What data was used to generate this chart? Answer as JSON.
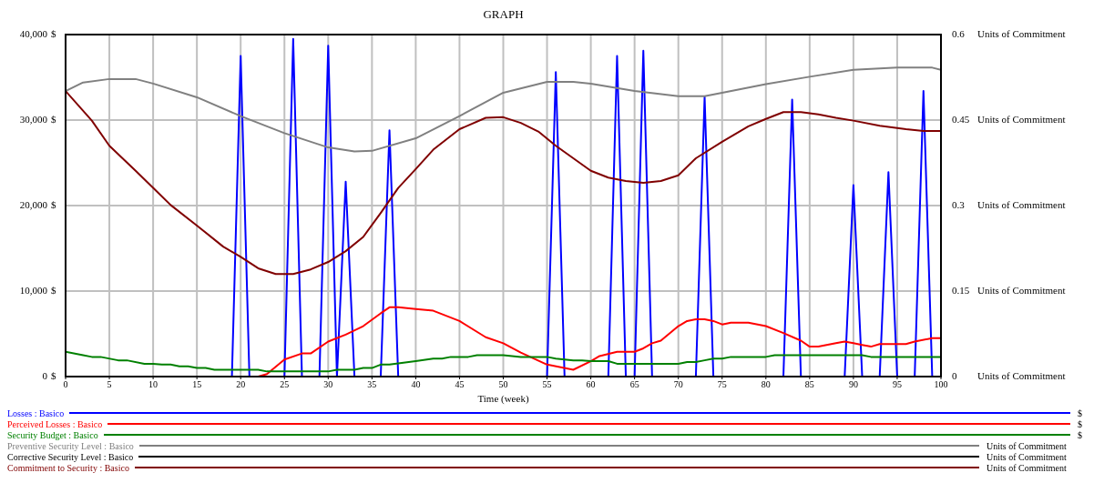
{
  "chart_data": {
    "type": "line",
    "title": "GRAPH",
    "xlabel": "Time (week)",
    "ylabel": "$",
    "y2label": "Units of Commitment",
    "xlim": [
      0,
      100
    ],
    "xticks": [
      0,
      5,
      10,
      15,
      20,
      25,
      30,
      35,
      40,
      45,
      50,
      55,
      60,
      65,
      70,
      75,
      80,
      85,
      90,
      95,
      100
    ],
    "ylim": [
      0,
      40000
    ],
    "yticks": [
      0,
      {
        "value": 10000,
        "label": "10,000"
      },
      {
        "value": 20000,
        "label": "20,000"
      },
      {
        "value": 30000,
        "label": "30,000"
      },
      {
        "value": 40000,
        "label": "40,000"
      }
    ],
    "y2lim": [
      0,
      0.6
    ],
    "y2ticks": [
      0,
      0.15,
      0.3,
      0.45,
      0.6
    ],
    "grid": true,
    "legend": "bottom",
    "marker": "none",
    "line_style": "solid",
    "series": [
      {
        "name": "Losses : Basico",
        "color": "#0000ff",
        "x": [
          0,
          19,
          20,
          21,
          25,
          26,
          27,
          29,
          30,
          31,
          32,
          33,
          36,
          37,
          38,
          55,
          56,
          57,
          62,
          63,
          64,
          65,
          66,
          67,
          72,
          73,
          74,
          82,
          83,
          84,
          89,
          90,
          91,
          93,
          94,
          95,
          97,
          98,
          99,
          100
        ],
        "values": [
          0,
          0,
          37500,
          0,
          0,
          39500,
          0,
          0,
          38700,
          0,
          22800,
          0,
          0,
          28800,
          0,
          0,
          35600,
          0,
          0,
          37500,
          0,
          0,
          38100,
          0,
          0,
          32700,
          0,
          0,
          32400,
          0,
          0,
          22400,
          0,
          0,
          23900,
          0,
          0,
          33400,
          0,
          0
        ]
      },
      {
        "name": "Perceived Losses : Basico",
        "color": "#ff0000",
        "x": [
          0,
          22,
          23,
          25,
          27,
          28,
          30,
          32,
          34,
          36,
          37,
          38,
          40,
          42,
          45,
          48,
          50,
          52,
          55,
          58,
          60,
          61,
          63,
          65,
          66,
          67,
          68,
          70,
          71,
          72,
          73,
          74,
          75,
          76,
          78,
          80,
          82,
          84,
          85,
          86,
          88,
          89,
          90,
          91,
          92,
          93,
          96,
          97,
          99,
          100
        ],
        "values": [
          0,
          0,
          300,
          2000,
          2700,
          2700,
          4100,
          4900,
          5900,
          7400,
          8100,
          8100,
          7900,
          7700,
          6500,
          4600,
          3900,
          2800,
          1400,
          800,
          1800,
          2400,
          2900,
          2900,
          3300,
          3900,
          4200,
          5900,
          6500,
          6700,
          6700,
          6500,
          6100,
          6300,
          6300,
          5900,
          5100,
          4200,
          3500,
          3500,
          3900,
          4100,
          3900,
          3700,
          3500,
          3800,
          3800,
          4100,
          4500,
          4500
        ]
      },
      {
        "name": "Security Budget : Basico",
        "color": "#008000",
        "x": [
          0,
          2,
          3,
          4,
          6,
          7,
          9,
          10,
          11,
          12,
          13,
          14,
          15,
          16,
          17,
          22,
          23,
          30,
          31,
          33,
          34,
          35,
          36,
          37,
          40,
          42,
          43,
          44,
          46,
          47,
          50,
          52,
          55,
          56,
          58,
          59,
          60,
          62,
          63,
          70,
          71,
          72,
          73,
          74,
          75,
          76,
          80,
          81,
          91,
          92,
          100
        ],
        "values": [
          2900,
          2500,
          2300,
          2300,
          1900,
          1900,
          1500,
          1500,
          1400,
          1400,
          1200,
          1200,
          1000,
          1000,
          800,
          800,
          600,
          600,
          800,
          800,
          1000,
          1000,
          1400,
          1400,
          1800,
          2100,
          2100,
          2300,
          2300,
          2500,
          2500,
          2300,
          2300,
          2100,
          1900,
          1900,
          1800,
          1800,
          1500,
          1500,
          1700,
          1700,
          1900,
          2100,
          2100,
          2300,
          2300,
          2500,
          2500,
          2300,
          2300
        ]
      },
      {
        "name": "Preventive Security Level : Basico",
        "color": "#808080",
        "axis": "y2",
        "x": [
          0,
          2,
          5,
          8,
          10,
          15,
          20,
          25,
          30,
          33,
          35,
          40,
          45,
          50,
          55,
          58,
          60,
          65,
          70,
          73,
          75,
          80,
          85,
          90,
          95,
          99,
          100
        ],
        "values": [
          0.501,
          0.516,
          0.522,
          0.522,
          0.514,
          0.49,
          0.457,
          0.427,
          0.402,
          0.395,
          0.396,
          0.418,
          0.457,
          0.498,
          0.517,
          0.517,
          0.514,
          0.501,
          0.492,
          0.492,
          0.498,
          0.513,
          0.526,
          0.538,
          0.542,
          0.542,
          0.538
        ]
      },
      {
        "name": "Corrective Security Level : Basico",
        "color": "#000000",
        "axis": "y2",
        "x": [
          0,
          100
        ],
        "values": [
          0,
          0
        ]
      },
      {
        "name": "Commitment to Security : Basico",
        "color": "#800000",
        "axis": "y2",
        "x": [
          0,
          3,
          5,
          8,
          10,
          12,
          15,
          18,
          20,
          22,
          24,
          26,
          28,
          30,
          32,
          34,
          36,
          38,
          40,
          42,
          45,
          48,
          50,
          52,
          54,
          56,
          58,
          60,
          62,
          64,
          66,
          68,
          70,
          72,
          75,
          78,
          80,
          82,
          84,
          86,
          88,
          90,
          93,
          96,
          98,
          100
        ],
        "values": [
          0.501,
          0.449,
          0.405,
          0.361,
          0.331,
          0.301,
          0.265,
          0.228,
          0.21,
          0.19,
          0.18,
          0.18,
          0.188,
          0.201,
          0.22,
          0.245,
          0.287,
          0.331,
          0.364,
          0.398,
          0.434,
          0.454,
          0.455,
          0.445,
          0.43,
          0.405,
          0.383,
          0.361,
          0.349,
          0.343,
          0.34,
          0.343,
          0.353,
          0.383,
          0.412,
          0.439,
          0.452,
          0.464,
          0.464,
          0.46,
          0.454,
          0.449,
          0.44,
          0.434,
          0.431,
          0.431
        ]
      }
    ]
  }
}
